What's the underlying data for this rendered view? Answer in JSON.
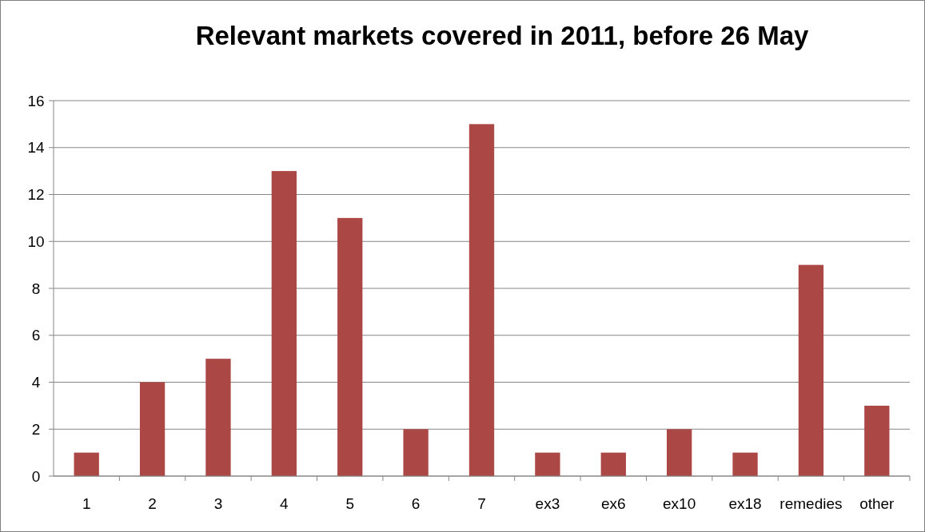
{
  "chart_data": {
    "type": "bar",
    "title": "Relevant markets covered in 2011, before 26 May",
    "categories": [
      "1",
      "2",
      "3",
      "4",
      "5",
      "6",
      "7",
      "ex3",
      "ex6",
      "ex10",
      "ex18",
      "remedies",
      "other"
    ],
    "values": [
      1,
      4,
      5,
      13,
      11,
      2,
      15,
      1,
      1,
      2,
      1,
      9,
      3
    ],
    "color": "#ab4745",
    "ylim": [
      0,
      16
    ],
    "yticks": [
      0,
      2,
      4,
      6,
      8,
      10,
      12,
      14,
      16
    ],
    "grid": "y"
  }
}
